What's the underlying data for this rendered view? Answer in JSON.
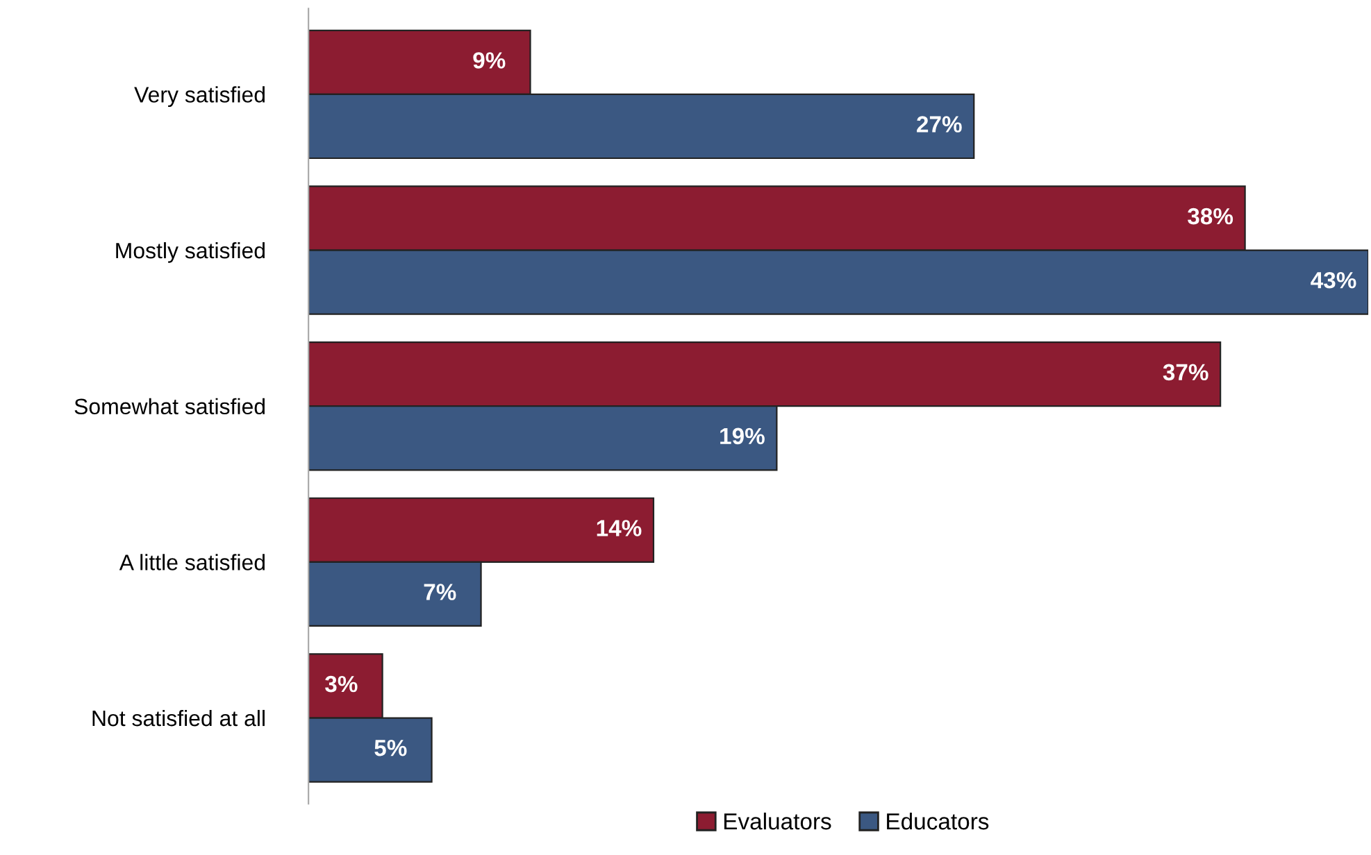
{
  "chart_data": {
    "type": "bar",
    "orientation": "horizontal",
    "categories": [
      "Very satisfied",
      "Mostly satisfied",
      "Somewhat satisfied",
      "A little satisfied",
      "Not satisfied at all"
    ],
    "series": [
      {
        "name": "Evaluators",
        "color": "#8c1c31",
        "values": [
          9,
          38,
          37,
          14,
          3
        ],
        "value_labels": [
          "9%",
          "38%",
          "37%",
          "14%",
          "3%"
        ]
      },
      {
        "name": "Educators",
        "color": "#3b5882",
        "values": [
          27,
          43,
          19,
          7,
          5
        ],
        "value_labels": [
          "27%",
          "43%",
          "19%",
          "7%",
          "5%"
        ]
      }
    ],
    "legend": "bottom",
    "grid": false,
    "tick_labels": "y"
  }
}
